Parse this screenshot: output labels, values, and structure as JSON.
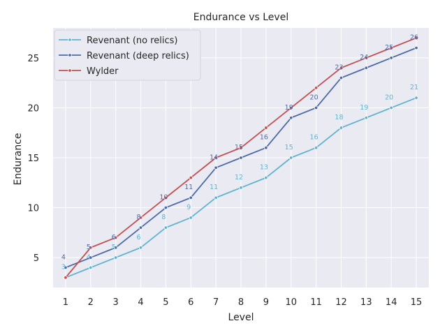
{
  "chart_data": {
    "type": "line",
    "title": "Endurance vs Level",
    "xlabel": "Level",
    "ylabel": "Endurance",
    "x": [
      1,
      2,
      3,
      4,
      5,
      6,
      7,
      8,
      9,
      10,
      11,
      12,
      13,
      14,
      15
    ],
    "xlim": [
      0.5,
      15.5
    ],
    "ylim": [
      2.0,
      28.0
    ],
    "yticks": [
      5,
      10,
      15,
      20,
      25
    ],
    "grid": true,
    "legend_position": "top-left",
    "background_color": "#eaeaf2",
    "series": [
      {
        "name": "Revenant (no relics)",
        "color": "#5fb3cf",
        "values": [
          3,
          4,
          5,
          6,
          8,
          9,
          11,
          12,
          13,
          15,
          16,
          18,
          19,
          20,
          21
        ],
        "labels": [
          "3",
          "4",
          "5",
          "6",
          "8",
          "9",
          "11",
          "12",
          "13",
          "15",
          "16",
          "18",
          "19",
          "20",
          "21"
        ]
      },
      {
        "name": "Revenant (deep relics)",
        "color": "#4c6aa8",
        "values": [
          4,
          5,
          6,
          8,
          10,
          11,
          14,
          15,
          16,
          19,
          20,
          23,
          24,
          25,
          26
        ],
        "labels": [
          "4",
          "5",
          "6",
          "8",
          "10",
          "11",
          "14",
          "15",
          "16",
          "19",
          "20",
          "23",
          "24",
          "25",
          "26"
        ]
      },
      {
        "name": "Wylder",
        "color": "#c44e52",
        "values": [
          3,
          6,
          7,
          9,
          11,
          13,
          15,
          16,
          18,
          20,
          22,
          24,
          25,
          26,
          27
        ],
        "labels": []
      }
    ]
  }
}
